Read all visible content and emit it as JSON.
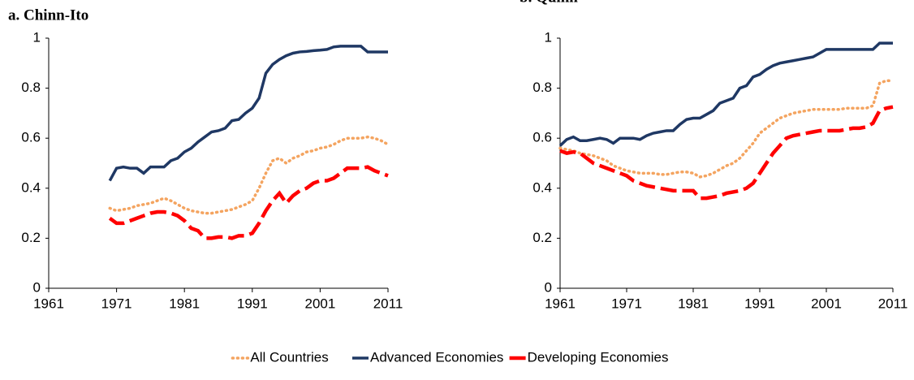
{
  "legend": [
    {
      "name": "All Countries",
      "color": "#f4a460",
      "style": "dotted"
    },
    {
      "name": "Advanced Economies",
      "color": "#1f3864",
      "style": "solid"
    },
    {
      "name": "Developing Economies",
      "color": "#ff0000",
      "style": "dashed"
    }
  ],
  "chart_data": [
    {
      "type": "line",
      "title": "a.   Chinn-Ito",
      "x": [
        1970,
        1971,
        1972,
        1973,
        1974,
        1975,
        1976,
        1977,
        1978,
        1979,
        1980,
        1981,
        1982,
        1983,
        1984,
        1985,
        1986,
        1987,
        1988,
        1989,
        1990,
        1991,
        1992,
        1993,
        1994,
        1995,
        1996,
        1997,
        1998,
        1999,
        2000,
        2001,
        2002,
        2003,
        2004,
        2005,
        2006,
        2007,
        2008,
        2009,
        2010,
        2011
      ],
      "series": [
        {
          "color": "#f4a460",
          "values": [
            0.32,
            0.31,
            0.315,
            0.32,
            0.33,
            0.335,
            0.34,
            0.35,
            0.36,
            0.35,
            0.335,
            0.32,
            0.31,
            0.305,
            0.3,
            0.3,
            0.305,
            0.31,
            0.315,
            0.325,
            0.335,
            0.35,
            0.4,
            0.46,
            0.51,
            0.52,
            0.5,
            0.52,
            0.53,
            0.545,
            0.55,
            0.56,
            0.565,
            0.575,
            0.59,
            0.6,
            0.6,
            0.6,
            0.605,
            0.6,
            0.59,
            0.575
          ]
        },
        {
          "color": "#1f3864",
          "values": [
            0.43,
            0.48,
            0.485,
            0.48,
            0.48,
            0.46,
            0.485,
            0.485,
            0.485,
            0.51,
            0.52,
            0.545,
            0.56,
            0.585,
            0.605,
            0.625,
            0.63,
            0.64,
            0.67,
            0.675,
            0.7,
            0.72,
            0.76,
            0.86,
            0.895,
            0.915,
            0.93,
            0.94,
            0.945,
            0.947,
            0.95,
            0.952,
            0.955,
            0.965,
            0.968,
            0.968,
            0.968,
            0.968,
            0.945,
            0.945,
            0.945,
            0.945
          ]
        },
        {
          "color": "#ff0000",
          "values": [
            0.28,
            0.26,
            0.26,
            0.27,
            0.28,
            0.29,
            0.3,
            0.305,
            0.305,
            0.3,
            0.29,
            0.27,
            0.24,
            0.23,
            0.2,
            0.2,
            0.205,
            0.205,
            0.2,
            0.21,
            0.21,
            0.22,
            0.26,
            0.31,
            0.35,
            0.38,
            0.34,
            0.37,
            0.39,
            0.4,
            0.42,
            0.43,
            0.43,
            0.44,
            0.46,
            0.48,
            0.48,
            0.48,
            0.485,
            0.47,
            0.46,
            0.45
          ]
        }
      ],
      "xlim": [
        1961,
        2011
      ],
      "xticks": [
        1961,
        1971,
        1981,
        1991,
        2001,
        2011
      ],
      "ylim": [
        0,
        1
      ],
      "yticks": [
        0,
        0.2,
        0.4,
        0.6,
        0.8,
        1
      ]
    },
    {
      "type": "line",
      "title": "b.   Quinn",
      "x": [
        1961,
        1962,
        1963,
        1964,
        1965,
        1966,
        1967,
        1968,
        1969,
        1970,
        1971,
        1972,
        1973,
        1974,
        1975,
        1976,
        1977,
        1978,
        1979,
        1980,
        1981,
        1982,
        1983,
        1984,
        1985,
        1986,
        1987,
        1988,
        1989,
        1990,
        1991,
        1992,
        1993,
        1994,
        1995,
        1996,
        1997,
        1998,
        1999,
        2000,
        2001,
        2002,
        2003,
        2004,
        2005,
        2006,
        2007,
        2008,
        2009,
        2010,
        2011
      ],
      "series": [
        {
          "color": "#f4a460",
          "values": [
            0.56,
            0.555,
            0.55,
            0.54,
            0.535,
            0.53,
            0.52,
            0.51,
            0.49,
            0.48,
            0.47,
            0.465,
            0.46,
            0.46,
            0.46,
            0.455,
            0.455,
            0.46,
            0.465,
            0.465,
            0.46,
            0.445,
            0.45,
            0.46,
            0.475,
            0.49,
            0.5,
            0.52,
            0.55,
            0.58,
            0.62,
            0.64,
            0.66,
            0.68,
            0.69,
            0.7,
            0.705,
            0.71,
            0.715,
            0.715,
            0.715,
            0.715,
            0.715,
            0.72,
            0.72,
            0.72,
            0.72,
            0.73,
            0.82,
            0.83,
            0.83
          ]
        },
        {
          "color": "#1f3864",
          "values": [
            0.57,
            0.595,
            0.605,
            0.59,
            0.59,
            0.595,
            0.6,
            0.595,
            0.58,
            0.6,
            0.6,
            0.6,
            0.595,
            0.61,
            0.62,
            0.625,
            0.63,
            0.63,
            0.655,
            0.675,
            0.68,
            0.68,
            0.695,
            0.71,
            0.74,
            0.75,
            0.76,
            0.8,
            0.81,
            0.845,
            0.855,
            0.875,
            0.89,
            0.9,
            0.905,
            0.91,
            0.915,
            0.92,
            0.925,
            0.94,
            0.955,
            0.955,
            0.955,
            0.955,
            0.955,
            0.955,
            0.955,
            0.955,
            0.98,
            0.98,
            0.98
          ]
        },
        {
          "color": "#ff0000",
          "values": [
            0.55,
            0.54,
            0.545,
            0.54,
            0.52,
            0.5,
            0.49,
            0.48,
            0.47,
            0.46,
            0.45,
            0.43,
            0.42,
            0.41,
            0.405,
            0.4,
            0.395,
            0.39,
            0.39,
            0.39,
            0.39,
            0.36,
            0.36,
            0.365,
            0.37,
            0.38,
            0.385,
            0.39,
            0.4,
            0.42,
            0.46,
            0.5,
            0.54,
            0.57,
            0.6,
            0.61,
            0.615,
            0.62,
            0.625,
            0.63,
            0.63,
            0.63,
            0.63,
            0.635,
            0.64,
            0.64,
            0.645,
            0.66,
            0.71,
            0.72,
            0.725
          ]
        }
      ],
      "xlim": [
        1961,
        2011
      ],
      "xticks": [
        1961,
        1971,
        1981,
        1991,
        2001,
        2011
      ],
      "ylim": [
        0,
        1
      ],
      "yticks": [
        0,
        0.2,
        0.4,
        0.6,
        0.8,
        1
      ]
    }
  ]
}
